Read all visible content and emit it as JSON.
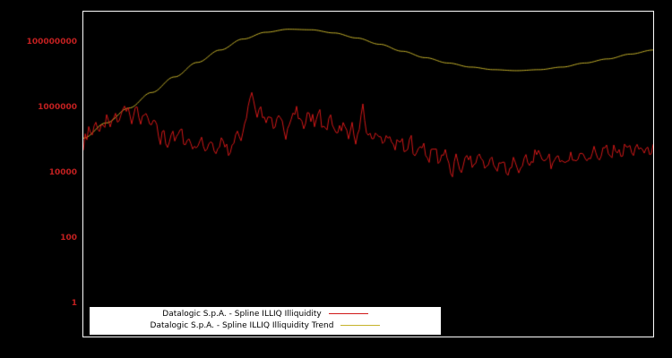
{
  "page": {
    "background": "#000000",
    "plot_border_color": "#ffffff",
    "tick_label_color": "#c22020"
  },
  "chart_data": {
    "type": "line",
    "title": "",
    "xlabel": "",
    "ylabel": "",
    "yscale": "log",
    "ylim": [
      0.1,
      900000000
    ],
    "grid": false,
    "legend_position": "bottom-center",
    "legend_background": "#ffffff",
    "ticks": [
      {
        "label": "100000000",
        "value": 100000000
      },
      {
        "label": "1000000",
        "value": 1000000
      },
      {
        "label": "10000",
        "value": 10000
      },
      {
        "label": "100",
        "value": 100
      },
      {
        "label": "1",
        "value": 1
      }
    ],
    "series": [
      {
        "name": "Datalogic S.p.A. - Spline ILLIQ Illiquidity",
        "color": "#d01818",
        "style": "noisy-line",
        "points": [
          [
            0.0,
            90000
          ],
          [
            0.01,
            250000
          ],
          [
            0.015,
            130000
          ],
          [
            0.022,
            400000
          ],
          [
            0.03,
            160000
          ],
          [
            0.04,
            500000
          ],
          [
            0.048,
            220000
          ],
          [
            0.055,
            700000
          ],
          [
            0.062,
            300000
          ],
          [
            0.07,
            900000
          ],
          [
            0.078,
            1400000
          ],
          [
            0.085,
            400000
          ],
          [
            0.092,
            1200000
          ],
          [
            0.1,
            350000
          ],
          [
            0.108,
            800000
          ],
          [
            0.115,
            250000
          ],
          [
            0.125,
            450000
          ],
          [
            0.135,
            90000
          ],
          [
            0.14,
            200000
          ],
          [
            0.148,
            60000
          ],
          [
            0.155,
            300000
          ],
          [
            0.163,
            100000
          ],
          [
            0.17,
            220000
          ],
          [
            0.178,
            70000
          ],
          [
            0.185,
            180000
          ],
          [
            0.195,
            60000
          ],
          [
            0.205,
            150000
          ],
          [
            0.215,
            45000
          ],
          [
            0.225,
            120000
          ],
          [
            0.235,
            50000
          ],
          [
            0.245,
            130000
          ],
          [
            0.255,
            40000
          ],
          [
            0.262,
            110000
          ],
          [
            0.27,
            240000
          ],
          [
            0.278,
            90000
          ],
          [
            0.285,
            500000
          ],
          [
            0.295,
            2600000
          ],
          [
            0.302,
            600000
          ],
          [
            0.31,
            1300000
          ],
          [
            0.318,
            300000
          ],
          [
            0.325,
            800000
          ],
          [
            0.335,
            250000
          ],
          [
            0.345,
            600000
          ],
          [
            0.355,
            180000
          ],
          [
            0.365,
            450000
          ],
          [
            0.375,
            700000
          ],
          [
            0.385,
            220000
          ],
          [
            0.395,
            900000
          ],
          [
            0.405,
            300000
          ],
          [
            0.415,
            650000
          ],
          [
            0.425,
            200000
          ],
          [
            0.435,
            500000
          ],
          [
            0.445,
            140000
          ],
          [
            0.455,
            380000
          ],
          [
            0.465,
            110000
          ],
          [
            0.472,
            300000
          ],
          [
            0.48,
            90000
          ],
          [
            0.49,
            1000000
          ],
          [
            0.498,
            200000
          ],
          [
            0.505,
            90000
          ],
          [
            0.515,
            250000
          ],
          [
            0.525,
            60000
          ],
          [
            0.535,
            180000
          ],
          [
            0.545,
            45000
          ],
          [
            0.555,
            140000
          ],
          [
            0.565,
            35000
          ],
          [
            0.575,
            110000
          ],
          [
            0.585,
            30000
          ],
          [
            0.595,
            90000
          ],
          [
            0.605,
            28000
          ],
          [
            0.615,
            70000
          ],
          [
            0.625,
            22000
          ],
          [
            0.635,
            60000
          ],
          [
            0.645,
            7000
          ],
          [
            0.655,
            30000
          ],
          [
            0.665,
            12000
          ],
          [
            0.675,
            35000
          ],
          [
            0.685,
            15000
          ],
          [
            0.695,
            40000
          ],
          [
            0.705,
            13000
          ],
          [
            0.715,
            30000
          ],
          [
            0.725,
            10000
          ],
          [
            0.735,
            28000
          ],
          [
            0.745,
            9000
          ],
          [
            0.755,
            25000
          ],
          [
            0.765,
            14000
          ],
          [
            0.775,
            30000
          ],
          [
            0.785,
            16000
          ],
          [
            0.795,
            60000
          ],
          [
            0.805,
            18000
          ],
          [
            0.815,
            40000
          ],
          [
            0.825,
            15000
          ],
          [
            0.835,
            35000
          ],
          [
            0.845,
            18000
          ],
          [
            0.855,
            45000
          ],
          [
            0.865,
            20000
          ],
          [
            0.875,
            50000
          ],
          [
            0.885,
            25000
          ],
          [
            0.895,
            55000
          ],
          [
            0.905,
            28000
          ],
          [
            0.915,
            60000
          ],
          [
            0.925,
            30000
          ],
          [
            0.935,
            65000
          ],
          [
            0.945,
            35000
          ],
          [
            0.955,
            70000
          ],
          [
            0.965,
            40000
          ],
          [
            0.975,
            65000
          ],
          [
            0.985,
            45000
          ],
          [
            1.0,
            55000
          ]
        ]
      },
      {
        "name": "Datalogic S.p.A. - Spline ILLIQ Illiquidity Trend",
        "color": "#c6b22b",
        "style": "smooth-line",
        "points": [
          [
            0.0,
            120000
          ],
          [
            0.04,
            350000
          ],
          [
            0.08,
            1000000
          ],
          [
            0.12,
            3000000
          ],
          [
            0.16,
            9000000
          ],
          [
            0.2,
            25000000
          ],
          [
            0.24,
            60000000
          ],
          [
            0.28,
            130000000
          ],
          [
            0.32,
            210000000
          ],
          [
            0.36,
            260000000
          ],
          [
            0.4,
            250000000
          ],
          [
            0.44,
            200000000
          ],
          [
            0.48,
            140000000
          ],
          [
            0.52,
            90000000
          ],
          [
            0.56,
            55000000
          ],
          [
            0.6,
            35000000
          ],
          [
            0.64,
            24000000
          ],
          [
            0.68,
            18000000
          ],
          [
            0.72,
            15000000
          ],
          [
            0.76,
            14000000
          ],
          [
            0.8,
            15000000
          ],
          [
            0.84,
            18000000
          ],
          [
            0.88,
            24000000
          ],
          [
            0.92,
            32000000
          ],
          [
            0.96,
            45000000
          ],
          [
            1.0,
            60000000
          ]
        ]
      }
    ]
  }
}
